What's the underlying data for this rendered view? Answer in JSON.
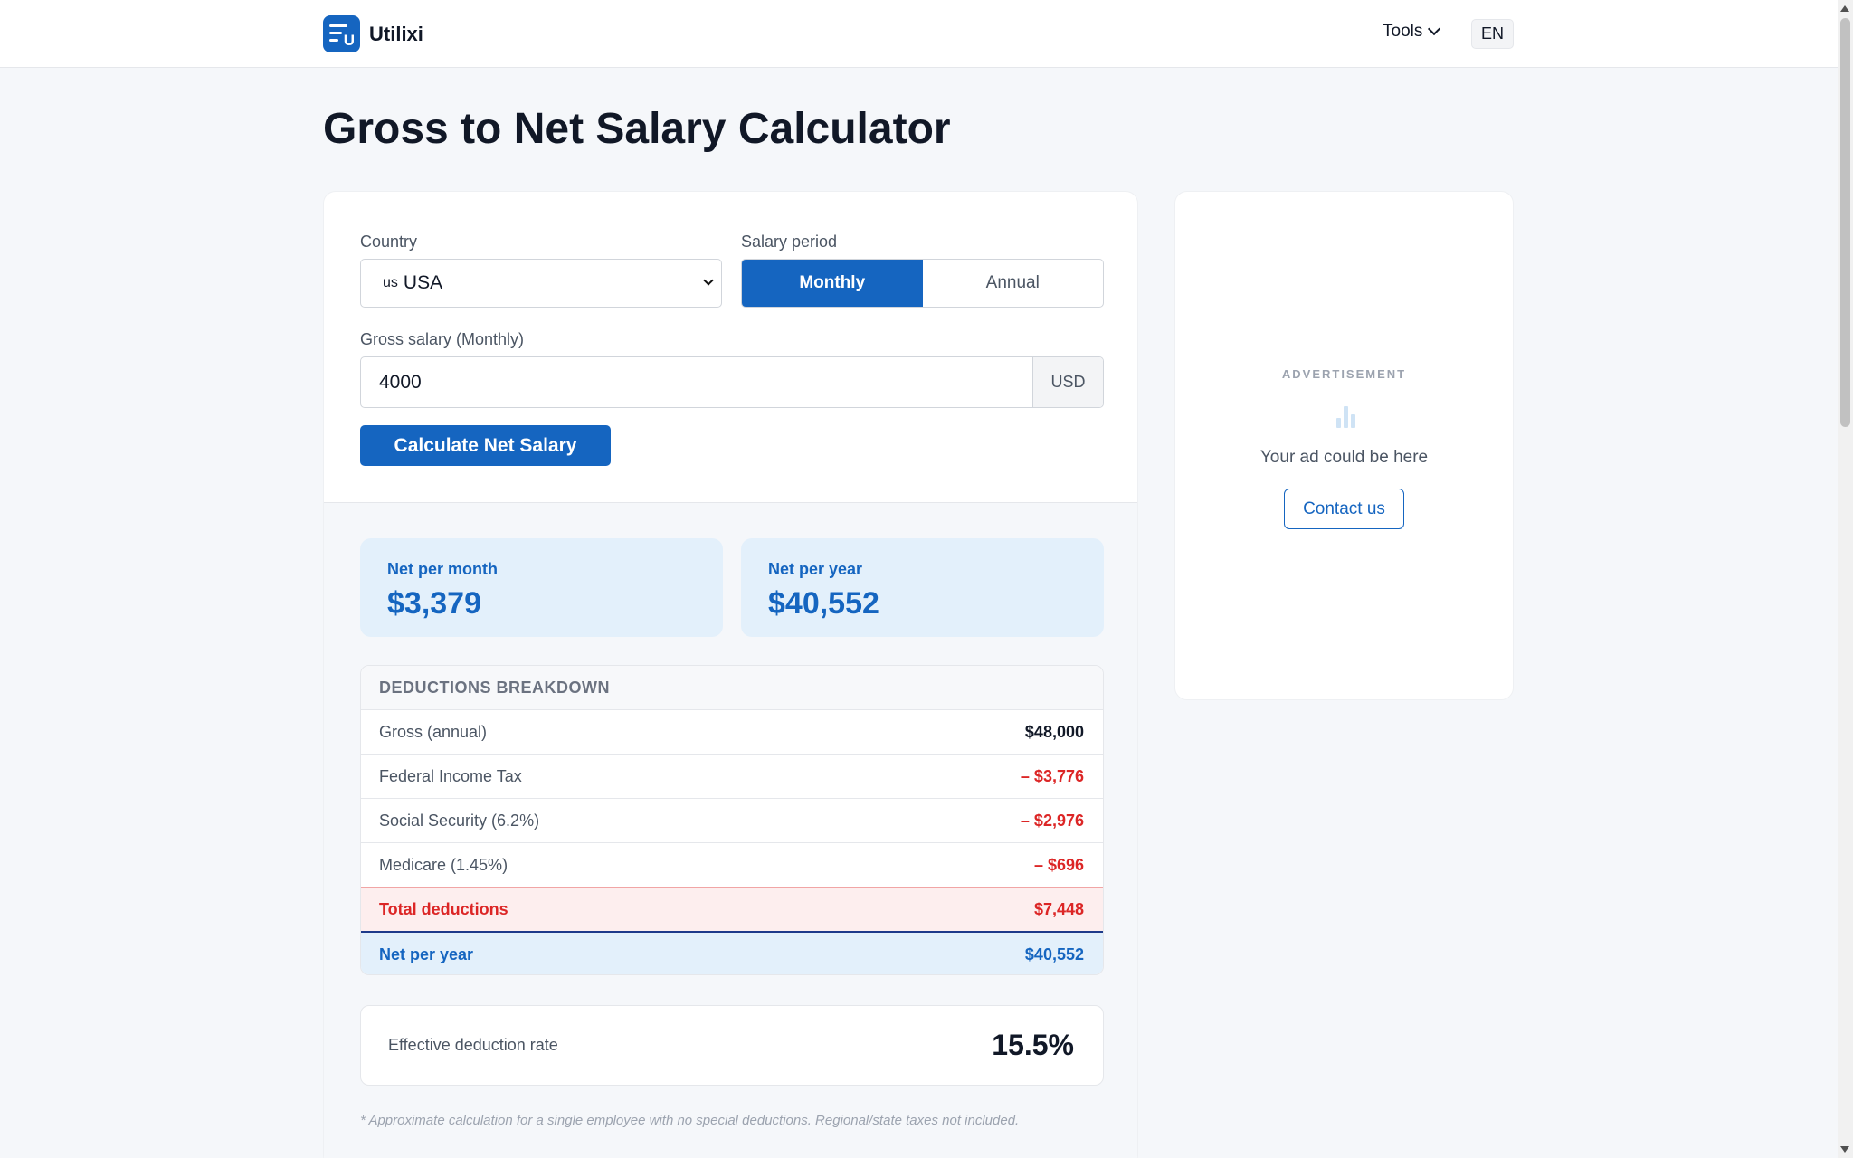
{
  "header": {
    "brand": "Utilixi",
    "logo_letter": "U",
    "tools_label": "Tools",
    "lang_label": "EN"
  },
  "page": {
    "title": "Gross to Net Salary Calculator"
  },
  "form": {
    "country_label": "Country",
    "country_flag": "us",
    "country_value": "USA",
    "period_label": "Salary period",
    "period_options": [
      "Monthly",
      "Annual"
    ],
    "period_selected": "Monthly",
    "gross_label": "Gross salary (Monthly)",
    "gross_value": "4000",
    "currency": "USD",
    "calculate_label": "Calculate Net Salary"
  },
  "results": {
    "net_month_label": "Net per month",
    "net_month_value": "$3,379",
    "net_year_label": "Net per year",
    "net_year_value": "$40,552",
    "breakdown_title": "DEDUCTIONS BREAKDOWN",
    "rows": [
      {
        "label": "Gross (annual)",
        "value": "$48,000"
      },
      {
        "label": "Federal Income Tax",
        "value": "– $3,776"
      },
      {
        "label": "Social Security (6.2%)",
        "value": "– $2,976"
      },
      {
        "label": "Medicare (1.45%)",
        "value": "– $696"
      }
    ],
    "total_label": "Total deductions",
    "total_value": "$7,448",
    "net_row_label": "Net per year",
    "net_row_value": "$40,552",
    "rate_label": "Effective deduction rate",
    "rate_value": "15.5%",
    "footnote": "* Approximate calculation for a single employee with no special deductions. Regional/state taxes not included."
  },
  "ad": {
    "label": "ADVERTISEMENT",
    "text": "Your ad could be here",
    "button": "Contact us"
  },
  "colors": {
    "accent": "#1565c0",
    "negative": "#dc2626",
    "net_bg": "#e3f0fb"
  }
}
